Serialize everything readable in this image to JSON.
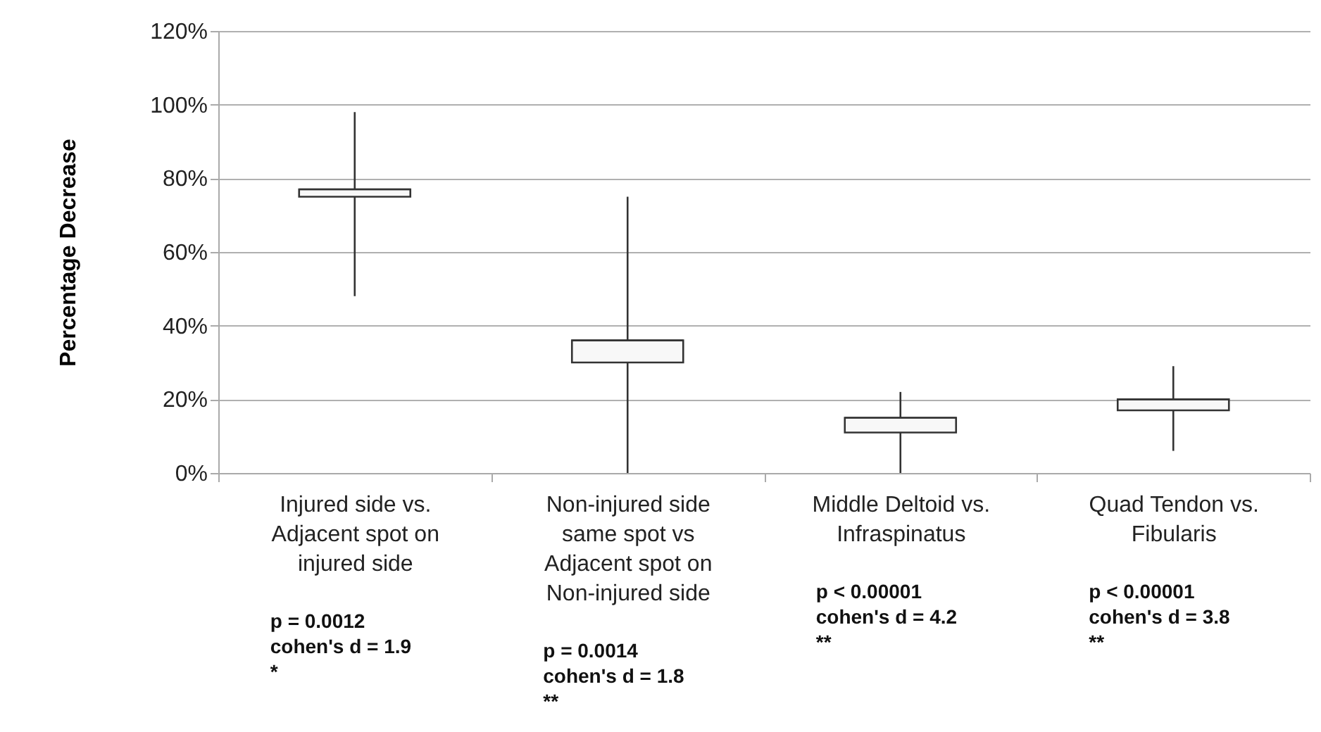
{
  "chart_data": {
    "type": "box",
    "ylabel": "Percentage Decrease",
    "categories": [
      "Injured side vs. Adjacent spot on injured side",
      "Non-injured side same spot vs Adjacent spot on Non-injured side",
      "Middle Deltoid vs. Infraspinatus",
      "Quad Tendon vs. Fibularis"
    ],
    "boxes": [
      {
        "low": 48,
        "q1": 75,
        "median": 77,
        "q3": 77,
        "high": 98
      },
      {
        "low": 0,
        "q1": 30,
        "median": 36,
        "q3": 36,
        "high": 75
      },
      {
        "low": 0,
        "q1": 11,
        "median": 15,
        "q3": 15,
        "high": 22
      },
      {
        "low": 6,
        "q1": 17,
        "median": 20,
        "q3": 20,
        "high": 29
      }
    ],
    "ylim": [
      0,
      120
    ],
    "yticks": [
      {
        "value": 0,
        "label": "0%"
      },
      {
        "value": 20,
        "label": "20%"
      },
      {
        "value": 40,
        "label": "40%"
      },
      {
        "value": 60,
        "label": "60%"
      },
      {
        "value": 80,
        "label": "80%"
      },
      {
        "value": 100,
        "label": "100%"
      },
      {
        "value": 120,
        "label": "120%"
      }
    ],
    "grid": "y",
    "annotations": [
      "p = 0.0012\ncohen's d = 1.9\n\n*",
      "p  = 0.0014\ncohen's d = 1.8\n**",
      "p < 0.00001\ncohen's d = 4.2\n**",
      "p < 0.00001\ncohen's d = 3.8\n**"
    ]
  }
}
